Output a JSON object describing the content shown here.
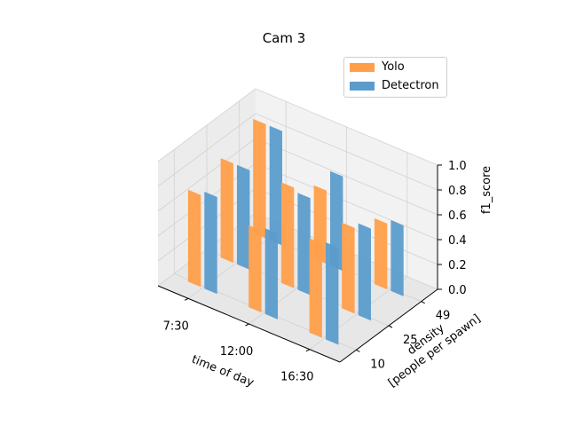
{
  "chart_data": {
    "type": "bar",
    "title": "Cam 3",
    "xlabel": "time of day",
    "ylabel": "density\n[people per spawn]",
    "zlabel": "f1_score",
    "x_categories": [
      "7:30",
      "12:00",
      "16:30"
    ],
    "y_categories": [
      "10",
      "25",
      "49"
    ],
    "zlim": [
      0.0,
      1.0
    ],
    "z_ticks": [
      "0.0",
      "0.2",
      "0.4",
      "0.6",
      "0.8",
      "1.0"
    ],
    "series": [
      {
        "name": "Yolo",
        "color": "#ff9f4a",
        "values": [
          [
            0.74,
            0.8,
            0.92
          ],
          [
            0.66,
            0.81,
            0.59
          ],
          [
            0.76,
            0.69,
            0.53
          ]
        ]
      },
      {
        "name": "Detectron",
        "color": "#5b9ccc",
        "values": [
          [
            0.78,
            0.8,
            0.92
          ],
          [
            0.69,
            0.78,
            0.76
          ],
          [
            0.78,
            0.74,
            0.57
          ]
        ]
      }
    ]
  }
}
